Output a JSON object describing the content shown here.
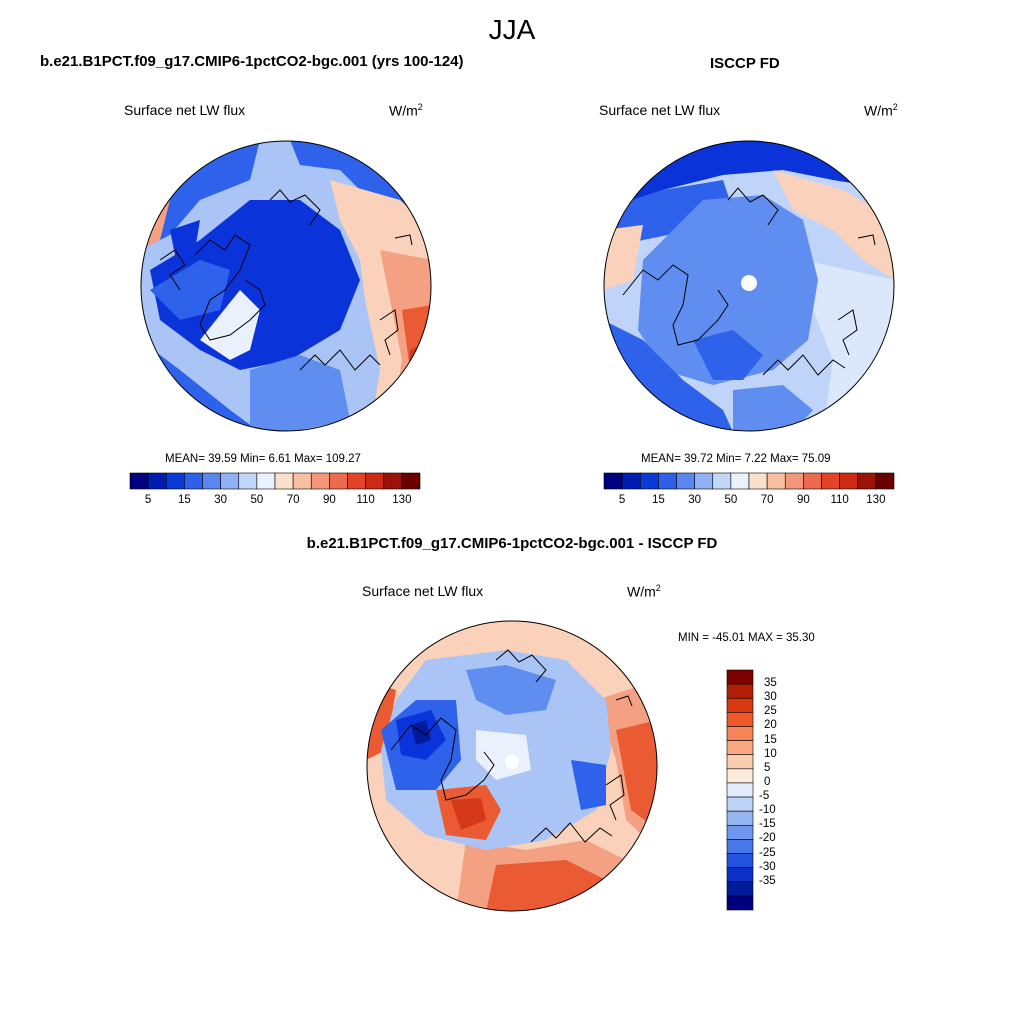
{
  "title": "JJA",
  "panels": [
    {
      "header": "b.e21.B1PCT.f09_g17.CMIP6-1pctCO2-bgc.001 (yrs 100-124)",
      "subtitle": "Surface net LW flux",
      "units": "W/m",
      "units_exp": "2",
      "stats": "MEAN=  39.59  Min=   6.61  Max= 109.27",
      "mean": 39.59,
      "min": 6.61,
      "max": 109.27
    },
    {
      "header": "ISCCP FD",
      "subtitle": "Surface net LW flux",
      "units": "W/m",
      "units_exp": "2",
      "stats": "MEAN=  39.72  Min=   7.22  Max=  75.09",
      "mean": 39.72,
      "min": 7.22,
      "max": 75.09
    },
    {
      "header": "b.e21.B1PCT.f09_g17.CMIP6-1pctCO2-bgc.001 - ISCCP FD",
      "subtitle": "Surface net LW flux",
      "units": "W/m",
      "units_exp": "2",
      "stats": "MIN = -45.01 MAX =  35.30",
      "min": -45.01,
      "max": 35.3
    }
  ],
  "colorbar_abs": {
    "orientation": "horizontal",
    "labels": [
      "5",
      "15",
      "30",
      "50",
      "70",
      "90",
      "110",
      "130"
    ],
    "colors": [
      "#00007f",
      "#001bb0",
      "#0a3ad6",
      "#2f60ea",
      "#5b86f0",
      "#8fb0f4",
      "#c2d6f8",
      "#eaf1fc",
      "#fbe0cc",
      "#f8bfa0",
      "#f3967a",
      "#ec6a4f",
      "#e34428",
      "#cc2a14",
      "#9a1208",
      "#6a0000"
    ]
  },
  "colorbar_diff": {
    "orientation": "vertical",
    "labels": [
      "35",
      "30",
      "25",
      "20",
      "15",
      "10",
      "5",
      "0",
      "-5",
      "-10",
      "-15",
      "-20",
      "-25",
      "-30",
      "-35"
    ],
    "colors": [
      "#7f0000",
      "#b01e05",
      "#d8390f",
      "#f15a28",
      "#f58458",
      "#f8a982",
      "#fbcdb0",
      "#fdecdc",
      "#e2ecfb",
      "#bdd2f7",
      "#96b6f2",
      "#6f97ee",
      "#4877ea",
      "#2253e1",
      "#0a30c8",
      "#001a9a",
      "#00007f"
    ]
  },
  "map_colors": {
    "deep_blue": "#0a33d9",
    "blue": "#2f62ea",
    "mid_blue": "#5f8ef0",
    "light_blue": "#a9c4f5",
    "pale": "#eaf1fc",
    "peach": "#fad2bb",
    "salmon": "#f4a083",
    "orange_red": "#ea5a33",
    "red": "#d43818"
  }
}
